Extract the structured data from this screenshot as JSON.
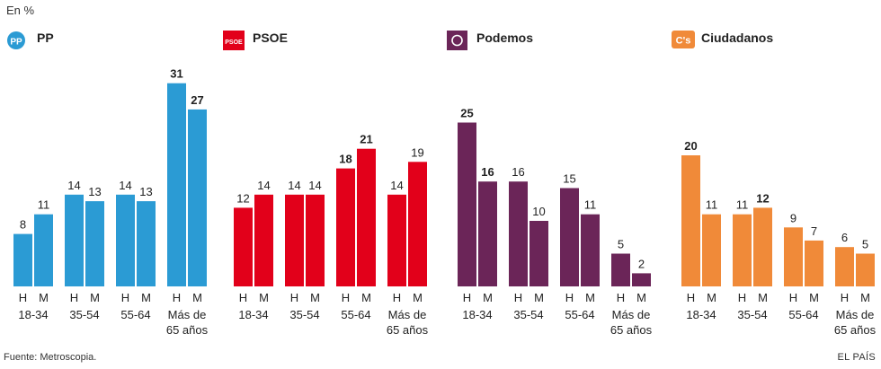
{
  "unit_label": "En %",
  "source": "Fuente: Metroscopia.",
  "brand": "EL PAÍS",
  "chart_data": {
    "type": "bar",
    "sex_labels": [
      "H",
      "M"
    ],
    "age_groups": [
      [
        "18-34"
      ],
      [
        "35-54"
      ],
      [
        "55-64"
      ],
      [
        "Más de",
        "65 años"
      ]
    ],
    "ylim": [
      0,
      31
    ],
    "grid": false,
    "parties": [
      {
        "name": "PP",
        "logo_text": "PP",
        "color": "#2b9bd4",
        "values": [
          [
            8,
            11
          ],
          [
            14,
            13
          ],
          [
            14,
            13
          ],
          [
            31,
            27
          ]
        ],
        "bold": [
          [
            false,
            false
          ],
          [
            false,
            false
          ],
          [
            false,
            false
          ],
          [
            true,
            true
          ]
        ]
      },
      {
        "name": "PSOE",
        "logo_text": "PSOE",
        "color": "#e2001a",
        "values": [
          [
            12,
            14
          ],
          [
            14,
            14
          ],
          [
            18,
            21
          ],
          [
            14,
            19
          ]
        ],
        "bold": [
          [
            false,
            false
          ],
          [
            false,
            false
          ],
          [
            true,
            true
          ],
          [
            false,
            false
          ]
        ]
      },
      {
        "name": "Podemos",
        "logo_text": "",
        "color": "#6b2558",
        "values": [
          [
            25,
            16
          ],
          [
            16,
            10
          ],
          [
            15,
            11
          ],
          [
            5,
            2
          ]
        ],
        "bold": [
          [
            true,
            true
          ],
          [
            false,
            false
          ],
          [
            false,
            false
          ],
          [
            false,
            false
          ]
        ]
      },
      {
        "name": "Ciudadanos",
        "logo_text": "C's",
        "color": "#f08a39",
        "values": [
          [
            20,
            11
          ],
          [
            11,
            12
          ],
          [
            9,
            7
          ],
          [
            6,
            5
          ]
        ],
        "bold": [
          [
            true,
            false
          ],
          [
            false,
            true
          ],
          [
            false,
            false
          ],
          [
            false,
            false
          ]
        ]
      }
    ]
  }
}
